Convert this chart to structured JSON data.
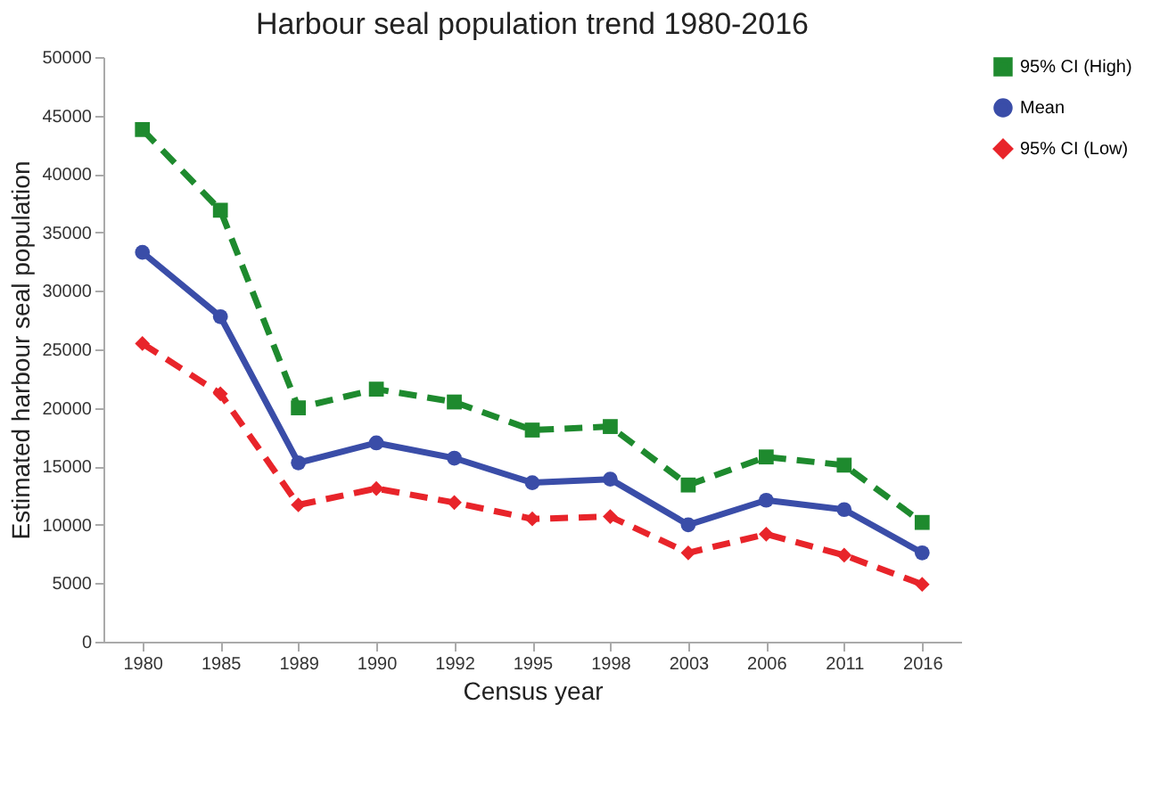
{
  "chart_data": {
    "type": "line",
    "title": "Harbour seal population trend 1980-2016",
    "xlabel": "Census year",
    "ylabel": "Estimated harbour seal population",
    "categories": [
      "1980",
      "1985",
      "1989",
      "1990",
      "1992",
      "1995",
      "1998",
      "2003",
      "2006",
      "2011",
      "2016"
    ],
    "series": [
      {
        "name": "95% CI (High)",
        "color": "#1e8a2e",
        "line_style": "dashed",
        "marker": "square",
        "values": [
          43800,
          36900,
          20000,
          21600,
          20500,
          18100,
          18400,
          13400,
          15800,
          15100,
          10200
        ]
      },
      {
        "name": "Mean",
        "color": "#3a4da8",
        "line_style": "solid",
        "marker": "circle",
        "values": [
          33300,
          27800,
          15300,
          17000,
          15700,
          13600,
          13900,
          10000,
          12100,
          11300,
          7600
        ]
      },
      {
        "name": "95% CI (Low)",
        "color": "#e8242a",
        "line_style": "dashed",
        "marker": "diamond",
        "values": [
          25500,
          21200,
          11700,
          13100,
          11900,
          10500,
          10700,
          7600,
          9200,
          7400,
          4900
        ]
      }
    ],
    "ylim": [
      0,
      50000
    ],
    "yticks": [
      0,
      5000,
      10000,
      15000,
      20000,
      25000,
      30000,
      35000,
      40000,
      45000,
      50000
    ],
    "grid": false,
    "legend": "right"
  }
}
